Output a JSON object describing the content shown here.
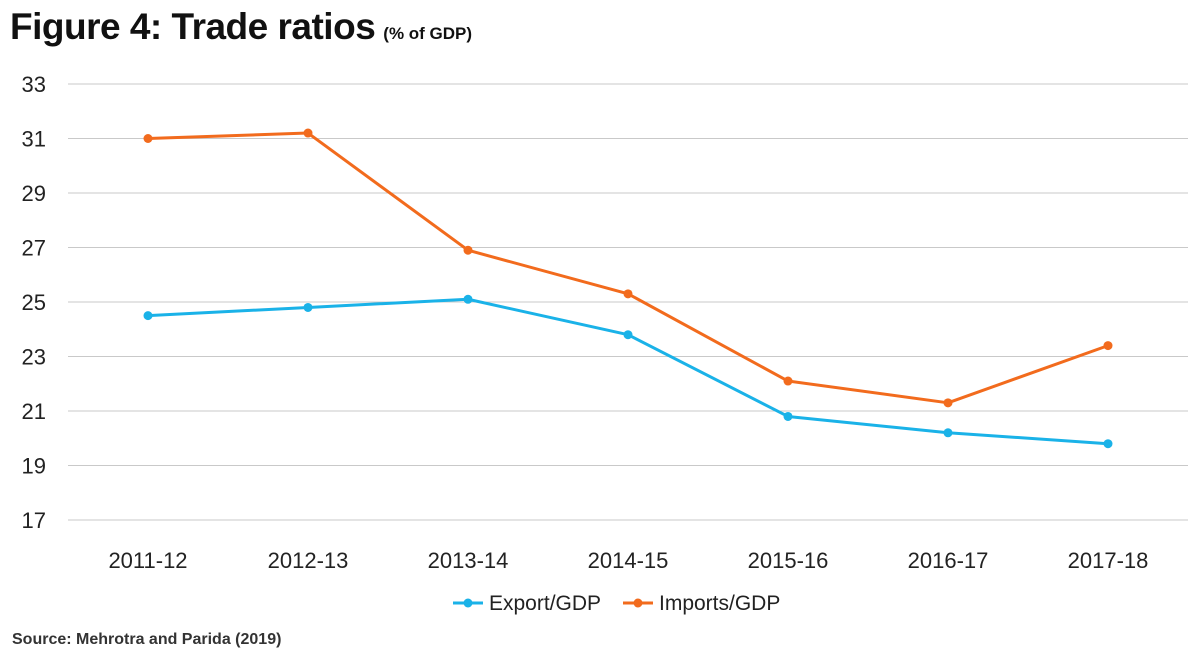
{
  "header": {
    "title": "Figure 4: Trade ratios",
    "subtitle": "(% of GDP)"
  },
  "source": "Source: Mehrotra and Parida (2019)",
  "chart_data": {
    "type": "line",
    "categories": [
      "2011-12",
      "2012-13",
      "2013-14",
      "2014-15",
      "2015-16",
      "2016-17",
      "2017-18"
    ],
    "ylim": [
      17,
      33
    ],
    "yticks": [
      17,
      19,
      21,
      23,
      25,
      27,
      29,
      31,
      33
    ],
    "grid": true,
    "legend_position": "bottom",
    "series": [
      {
        "name": "Export/GDP",
        "color": "#1ab2e8",
        "values": [
          24.5,
          24.8,
          25.1,
          23.8,
          20.8,
          20.2,
          19.8
        ]
      },
      {
        "name": "Imports/GDP",
        "color": "#f26b1d",
        "values": [
          31.0,
          31.2,
          26.9,
          25.3,
          22.1,
          21.3,
          23.4
        ]
      }
    ]
  }
}
